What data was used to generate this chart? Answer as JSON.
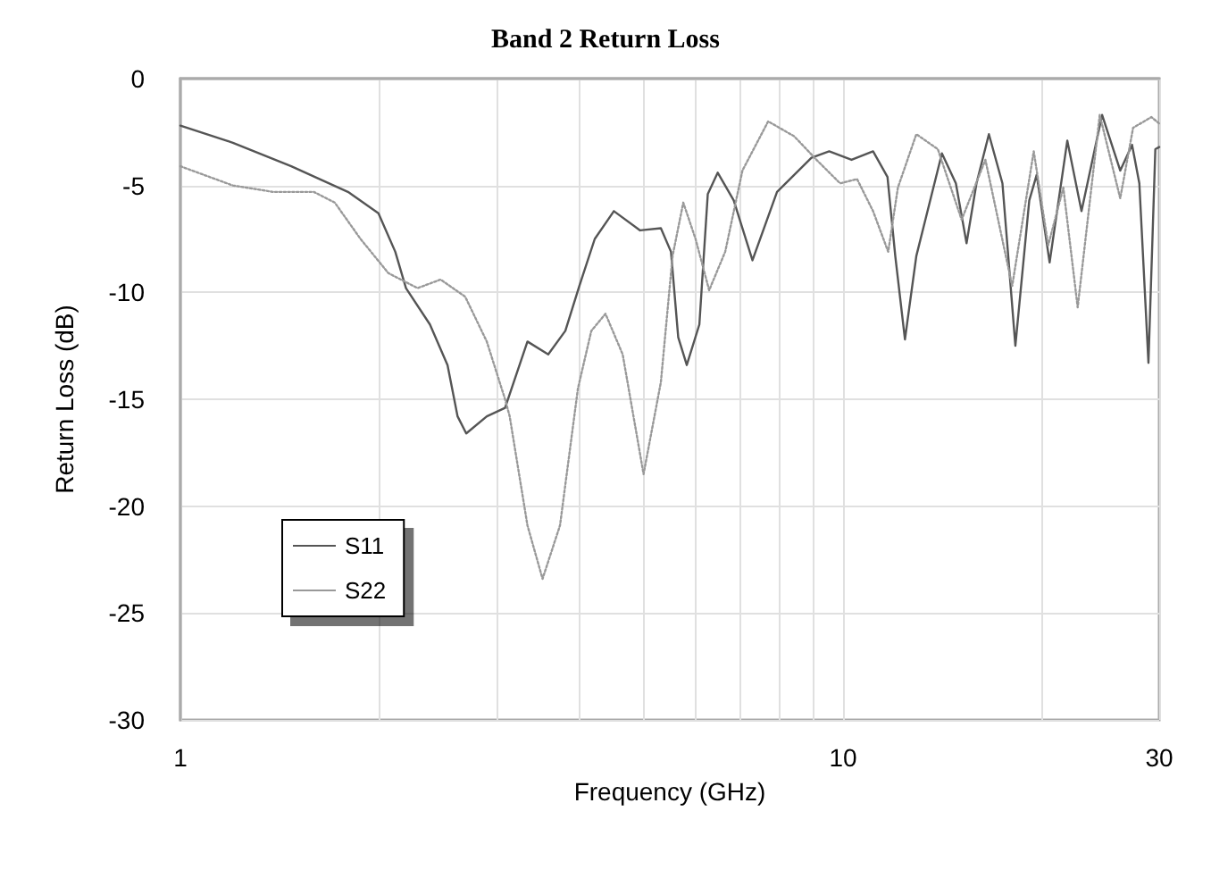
{
  "chart_data": {
    "type": "line",
    "title": "Band 2 Return Loss",
    "xlabel": "Frequency (GHz)",
    "ylabel": "Return Loss (dB)",
    "log": "x",
    "xlim": [
      1,
      30
    ],
    "ylim": [
      -30,
      0
    ],
    "xticks": [
      1,
      {
        "value": 2,
        "label": null
      },
      {
        "value": 3,
        "label": null
      },
      {
        "value": 4,
        "label": null
      },
      {
        "value": 5,
        "label": null
      },
      {
        "value": 6,
        "label": null
      },
      {
        "value": 7,
        "label": null
      },
      {
        "value": 8,
        "label": null
      },
      {
        "value": 9,
        "label": null
      },
      10,
      {
        "value": 20,
        "label": null
      },
      30
    ],
    "yticks": [
      -30,
      -25,
      -20,
      -15,
      -10,
      -5,
      0
    ],
    "grid": true,
    "legend": "left",
    "marker": "none",
    "series": [
      {
        "name": "S11",
        "color": "#555555",
        "line_style": "solid",
        "x": [
          1,
          1.2,
          1.47,
          1.79,
          1.99,
          2.11,
          2.19,
          2.38,
          2.53,
          2.62,
          2.7,
          2.9,
          3.09,
          3.34,
          3.59,
          3.81,
          4.0,
          4.22,
          4.51,
          4.94,
          5.31,
          5.5,
          5.64,
          5.81,
          6.07,
          6.25,
          6.47,
          6.84,
          7.3,
          7.95,
          8.96,
          9.53,
          10.3,
          11.1,
          11.67,
          11.99,
          12.4,
          12.9,
          14.1,
          14.8,
          15.36,
          15.9,
          16.6,
          17.4,
          18.2,
          19.1,
          19.6,
          20.5,
          21.8,
          22.9,
          24.6,
          26.2,
          27.3,
          28.0,
          28.9,
          29.6,
          30
        ],
        "values": [
          -2.2,
          -3.0,
          -4.1,
          -5.3,
          -6.3,
          -8.1,
          -9.8,
          -11.5,
          -13.4,
          -15.8,
          -16.6,
          -15.8,
          -15.4,
          -12.3,
          -12.9,
          -11.8,
          -9.7,
          -7.5,
          -6.2,
          -7.1,
          -7.0,
          -8.1,
          -12.1,
          -13.4,
          -11.5,
          -5.4,
          -4.4,
          -5.7,
          -8.5,
          -5.3,
          -3.7,
          -3.4,
          -3.8,
          -3.4,
          -4.6,
          -8.3,
          -12.2,
          -8.3,
          -3.5,
          -4.9,
          -7.7,
          -4.9,
          -2.6,
          -4.9,
          -12.5,
          -5.7,
          -4.5,
          -8.6,
          -2.9,
          -6.2,
          -1.7,
          -4.3,
          -3.1,
          -4.9,
          -13.3,
          -3.3,
          -3.2
        ]
      },
      {
        "name": "S22",
        "color": "#999999",
        "line_style": "dotted",
        "x": [
          1,
          1.2,
          1.38,
          1.59,
          1.71,
          1.87,
          2.06,
          2.28,
          2.47,
          2.69,
          2.9,
          3.09,
          3.14,
          3.34,
          3.52,
          3.74,
          3.98,
          4.17,
          4.38,
          4.65,
          5.0,
          5.31,
          5.53,
          5.74,
          5.99,
          6.28,
          6.64,
          7.05,
          7.71,
          8.44,
          9.12,
          9.9,
          10.5,
          11.1,
          11.7,
          12.1,
          12.9,
          13.9,
          15.1,
          16.4,
          18.0,
          19.4,
          20.4,
          21.5,
          22.6,
          24.4,
          26.2,
          27.4,
          29.2,
          30
        ],
        "values": [
          -4.1,
          -5.0,
          -5.3,
          -5.3,
          -5.8,
          -7.5,
          -9.1,
          -9.8,
          -9.4,
          -10.2,
          -12.3,
          -15.0,
          -15.8,
          -20.9,
          -23.4,
          -20.9,
          -14.5,
          -11.8,
          -11.0,
          -12.9,
          -18.5,
          -14.2,
          -8.3,
          -5.8,
          -7.5,
          -9.9,
          -8.1,
          -4.3,
          -2.0,
          -2.7,
          -3.8,
          -4.9,
          -4.7,
          -6.2,
          -8.1,
          -5.1,
          -2.6,
          -3.3,
          -6.6,
          -3.8,
          -9.7,
          -3.4,
          -7.8,
          -5.1,
          -10.7,
          -1.7,
          -5.6,
          -2.3,
          -1.8,
          -2.1
        ]
      }
    ]
  }
}
